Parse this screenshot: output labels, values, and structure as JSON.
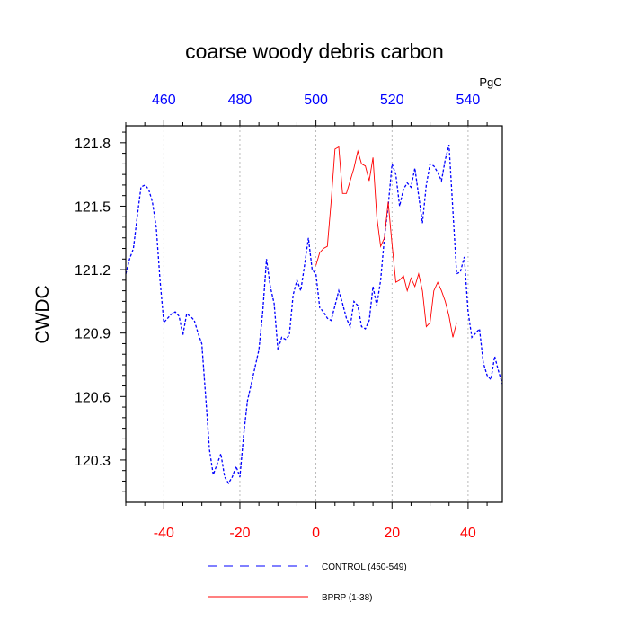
{
  "chart_data": {
    "type": "line",
    "title": "coarse woody debris carbon",
    "ylabel": "CWDC",
    "units_label": "PgC",
    "xlim": [
      -50,
      49
    ],
    "ylim": [
      120.1,
      121.88
    ],
    "x_ticks": [
      -40,
      -20,
      0,
      20,
      40
    ],
    "x_tick_labels": [
      "-40",
      "-20",
      "0",
      "20",
      "40"
    ],
    "top_ticks": [
      460,
      480,
      500,
      520,
      540
    ],
    "top_tick_labels": [
      "460",
      "480",
      "500",
      "520",
      "540"
    ],
    "y_ticks": [
      120.3,
      120.6,
      120.9,
      121.2,
      121.5,
      121.8
    ],
    "y_tick_labels": [
      "120.3",
      "120.6",
      "120.9",
      "121.2",
      "121.5",
      "121.8"
    ],
    "grid": "vertical dotted at major x ticks",
    "colors": {
      "bottom_axis_labels": "#ff0000",
      "top_axis_labels": "#0000ff",
      "control": "#0000ff",
      "bprp": "#ff0000"
    },
    "series": [
      {
        "name": "CONTROL (450-549)",
        "style": "dashed",
        "x": [
          -50,
          -49,
          -48,
          -47,
          -46,
          -45,
          -44,
          -43,
          -42,
          -41,
          -40,
          -39,
          -38,
          -37,
          -36,
          -35,
          -34,
          -33,
          -32,
          -31,
          -30,
          -29,
          -28,
          -27,
          -26,
          -25,
          -24,
          -23,
          -22,
          -21,
          -20,
          -19,
          -18,
          -17,
          -16,
          -15,
          -14,
          -13,
          -12,
          -11,
          -10,
          -9,
          -8,
          -7,
          -6,
          -5,
          -4,
          -3,
          -2,
          -1,
          0,
          1,
          2,
          3,
          4,
          5,
          6,
          7,
          8,
          9,
          10,
          11,
          12,
          13,
          14,
          15,
          16,
          17,
          18,
          19,
          20,
          21,
          22,
          23,
          24,
          25,
          26,
          27,
          28,
          29,
          30,
          31,
          32,
          33,
          34,
          35,
          36,
          37,
          38,
          39,
          40,
          41,
          42,
          43,
          44,
          45,
          46,
          47,
          48,
          49
        ],
        "values": [
          121.18,
          121.25,
          121.3,
          121.45,
          121.59,
          121.6,
          121.58,
          121.52,
          121.4,
          121.15,
          120.95,
          120.97,
          120.99,
          121.0,
          120.98,
          120.89,
          120.99,
          120.98,
          120.96,
          120.9,
          120.85,
          120.6,
          120.35,
          120.23,
          120.28,
          120.33,
          120.22,
          120.19,
          120.22,
          120.27,
          120.22,
          120.42,
          120.58,
          120.66,
          120.74,
          120.82,
          121.0,
          121.25,
          121.12,
          121.04,
          120.82,
          120.88,
          120.87,
          120.89,
          121.08,
          121.15,
          121.1,
          121.22,
          121.35,
          121.2,
          121.18,
          121.02,
          121.0,
          120.97,
          120.96,
          121.03,
          121.1,
          121.04,
          120.97,
          120.93,
          121.05,
          121.03,
          120.93,
          120.92,
          120.96,
          121.12,
          121.03,
          121.15,
          121.35,
          121.5,
          121.7,
          121.65,
          121.5,
          121.58,
          121.61,
          121.59,
          121.68,
          121.55,
          121.42,
          121.6,
          121.7,
          121.69,
          121.66,
          121.62,
          121.72,
          121.79,
          121.48,
          121.18,
          121.19,
          121.26,
          121.0,
          120.88,
          120.9,
          120.92,
          120.76,
          120.7,
          120.68,
          120.79,
          120.72,
          120.66
        ]
      },
      {
        "name": "BPRP (1-38)",
        "style": "solid",
        "x": [
          0,
          1,
          2,
          3,
          4,
          5,
          6,
          7,
          8,
          9,
          10,
          11,
          12,
          13,
          14,
          15,
          16,
          17,
          18,
          19,
          20,
          21,
          22,
          23,
          24,
          25,
          26,
          27,
          28,
          29,
          30,
          31,
          32,
          33,
          34,
          35,
          36,
          37
        ],
        "values": [
          121.22,
          121.28,
          121.3,
          121.31,
          121.52,
          121.77,
          121.78,
          121.56,
          121.56,
          121.62,
          121.68,
          121.76,
          121.7,
          121.69,
          121.62,
          121.73,
          121.45,
          121.31,
          121.35,
          121.52,
          121.32,
          121.14,
          121.15,
          121.17,
          121.1,
          121.16,
          121.12,
          121.18,
          121.1,
          120.93,
          120.95,
          121.1,
          121.14,
          121.1,
          121.05,
          120.98,
          120.88,
          120.95
        ]
      }
    ]
  }
}
